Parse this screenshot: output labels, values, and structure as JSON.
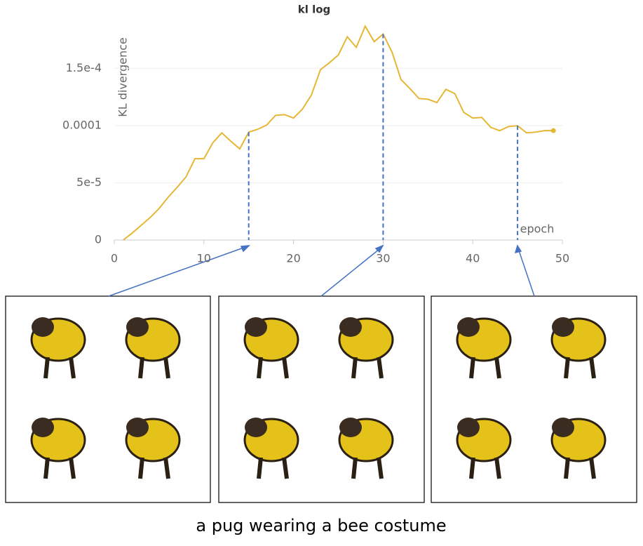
{
  "chart_data": {
    "type": "line",
    "title": "kl log",
    "y_label": "KL divergence",
    "x_label": "epoch",
    "x": [
      1,
      2,
      3,
      4,
      5,
      6,
      7,
      8,
      9,
      10,
      11,
      12,
      13,
      14,
      15,
      16,
      17,
      18,
      19,
      20,
      21,
      22,
      23,
      24,
      25,
      26,
      27,
      28,
      29,
      30,
      31,
      32,
      33,
      34,
      35,
      36,
      37,
      38,
      39,
      40,
      41,
      42,
      43,
      44,
      45,
      46,
      47,
      48,
      49
    ],
    "values": [
      0,
      6.1e-06,
      1.29e-05,
      1.96e-05,
      2.75e-05,
      3.73e-05,
      4.59e-05,
      5.51e-05,
      7.1e-05,
      7.1e-05,
      8.5e-05,
      9.36e-05,
      8.63e-05,
      7.96e-05,
      9.42e-05,
      9.67e-05,
      0.0001004,
      0.0001089,
      0.0001095,
      0.0001065,
      0.0001144,
      0.0001267,
      0.0001487,
      0.0001548,
      0.0001616,
      0.0001775,
      0.0001683,
      0.0001867,
      0.0001732,
      0.0001799,
      0.000164,
      0.0001401,
      0.0001322,
      0.0001236,
      0.000123,
      0.00012,
      0.0001316,
      0.0001279,
      0.0001114,
      0.0001065,
      0.0001071,
      9.85e-05,
      9.55e-05,
      9.91e-05,
      9.98e-05,
      9.36e-05,
      9.42e-05,
      9.55e-05,
      9.55e-05
    ],
    "color": "#e6b735",
    "xlim": [
      0,
      50
    ],
    "xticks": [
      0,
      10,
      20,
      30,
      40,
      50
    ],
    "ylim": [
      0,
      0.00019
    ],
    "yticks": [
      0,
      {
        "value": 5e-05,
        "label": "5e-5"
      },
      {
        "value": 0.0001,
        "label": "0.0001"
      },
      {
        "value": 0.00015,
        "label": "1.5e-4"
      }
    ],
    "grid": true,
    "highlight_epochs": [
      15,
      30,
      45
    ],
    "caption": "a pug wearing a bee costume"
  }
}
